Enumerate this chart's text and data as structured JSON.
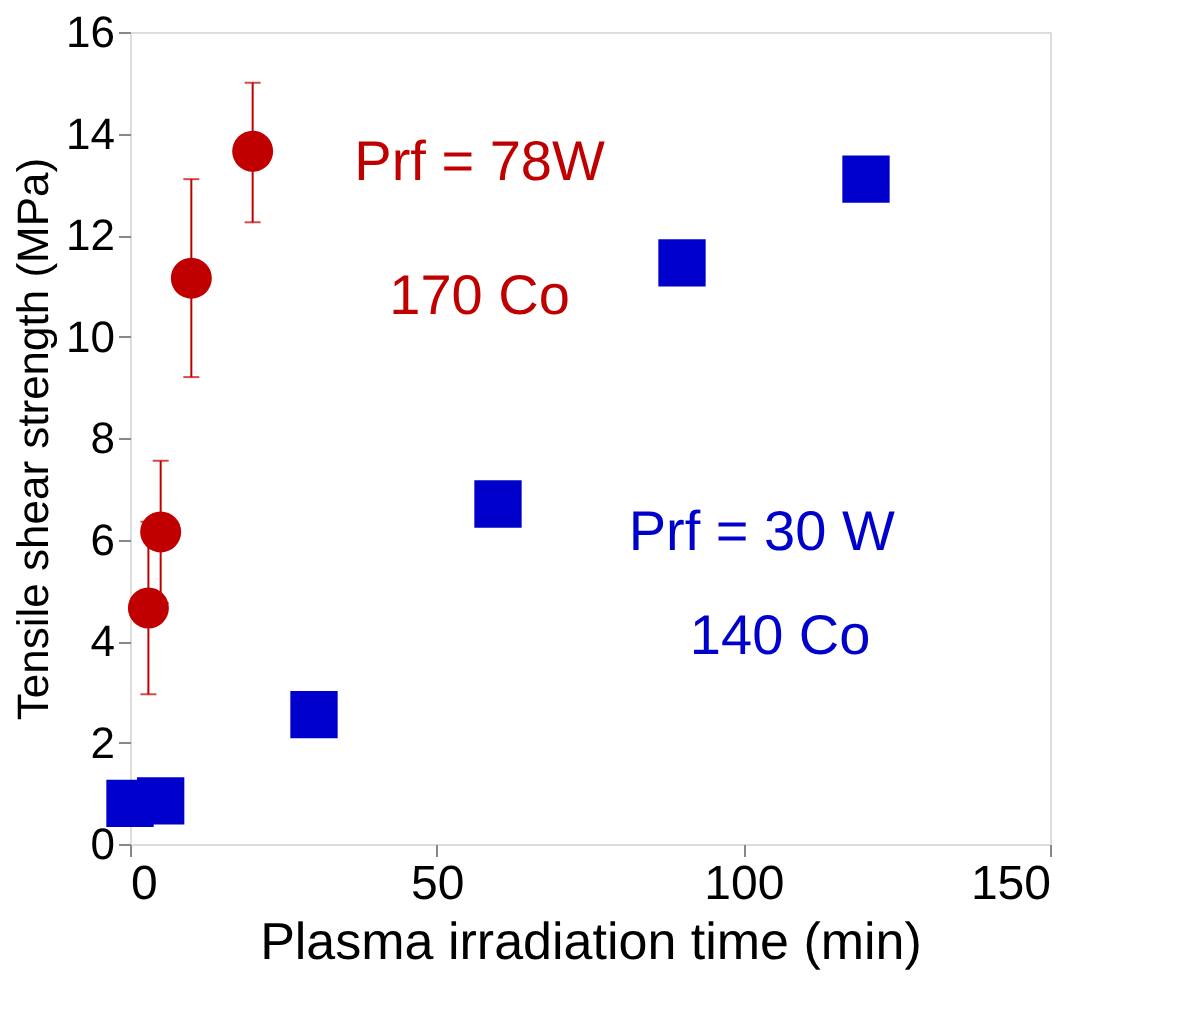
{
  "chart_data": {
    "type": "scatter",
    "xlabel": "Plasma irradiation time (min)",
    "ylabel": "Tensile shear strength (MPa)",
    "series": [
      {
        "color": "#c00000",
        "marker": "circle",
        "x": [
          3,
          5,
          10,
          20
        ],
        "values": [
          4.65,
          6.15,
          11.15,
          13.65
        ],
        "errors": [
          [
            2.95,
            6.35
          ],
          [
            4.75,
            7.55
          ],
          [
            9.2,
            13.1
          ],
          [
            12.25,
            15.0
          ]
        ]
      },
      {
        "color": "#0000cc",
        "marker": "square",
        "x": [
          0,
          5,
          30,
          60,
          90,
          120
        ],
        "values": [
          0.8,
          0.85,
          2.55,
          6.7,
          11.45,
          13.1
        ]
      }
    ],
    "annotations": [
      "Prf = 78W",
      "170 Co",
      "Prf = 30 W",
      "140 Co"
    ],
    "xlim": [
      0,
      150
    ],
    "xticks": [
      0,
      50,
      100,
      150
    ],
    "ylim": [
      0,
      16
    ],
    "yticks": [
      0,
      2,
      4,
      6,
      8,
      10,
      12,
      14,
      16
    ],
    "grid": false
  }
}
